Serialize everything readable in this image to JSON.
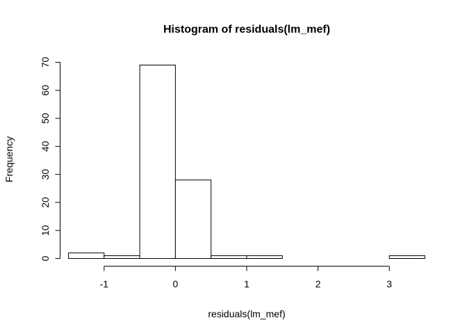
{
  "chart_data": {
    "type": "bar",
    "title": "Histogram of residuals(lm_mef)",
    "xlabel": "residuals(lm_mef)",
    "ylabel": "Frequency",
    "bin_edges": [
      -1.5,
      -1.0,
      -0.5,
      0.0,
      0.5,
      1.0,
      1.5,
      2.0,
      2.5,
      3.0,
      3.5
    ],
    "values": [
      2,
      1,
      69,
      28,
      1,
      1,
      0,
      0,
      0,
      1
    ],
    "xticks": [
      -1,
      0,
      1,
      2,
      3
    ],
    "yticks": [
      0,
      10,
      20,
      30,
      40,
      50,
      60,
      70
    ],
    "xlim": [
      -1.5,
      3.5
    ],
    "ylim": [
      0,
      70
    ],
    "grid": false,
    "bar_fill": "#ffffff",
    "bar_stroke": "#000000"
  }
}
